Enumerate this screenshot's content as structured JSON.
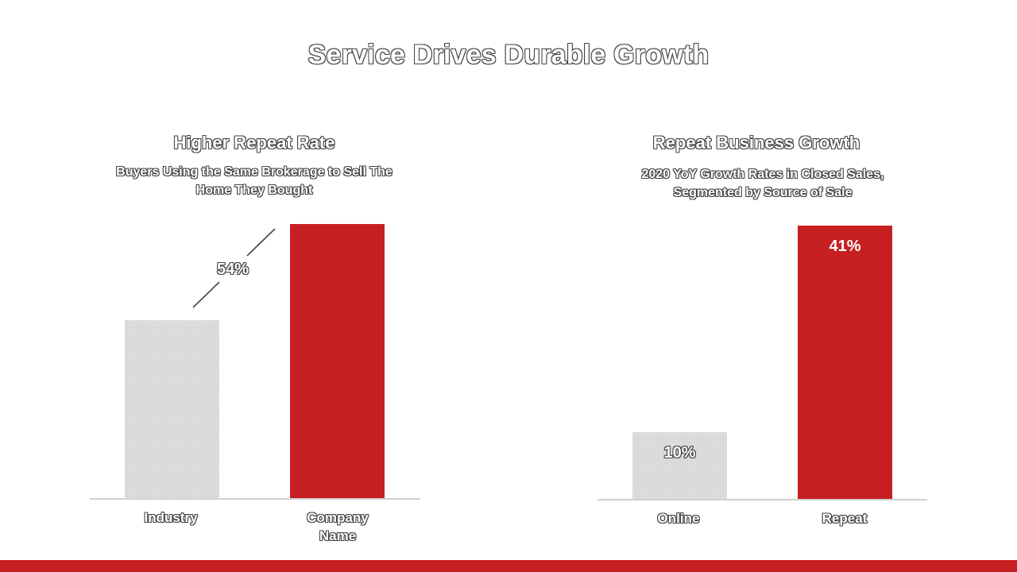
{
  "slide": {
    "title": "Service Drives Durable Growth",
    "brand_color": "#c61f21",
    "neutral_color": "#d9d9d9"
  },
  "left_panel": {
    "title": "Higher Repeat Rate",
    "subtitle_lines": [
      "Buyers Using the Same Brokerage to Sell The",
      "Home They Bought"
    ],
    "difference_label": "54%",
    "category_labels": [
      [
        "Industry"
      ],
      [
        "Company",
        "Name"
      ]
    ]
  },
  "right_panel": {
    "title": "Repeat Business Growth",
    "subtitle_lines": [
      "2020 YoY Growth Rates in Closed Sales,",
      "Segmented by Source of Sale"
    ],
    "value_labels": [
      "10%",
      "41%"
    ],
    "category_labels": [
      [
        "Online"
      ],
      [
        "Repeat"
      ]
    ]
  },
  "chart_data": [
    {
      "type": "bar",
      "title": "Higher Repeat Rate",
      "subtitle": "Buyers Using the Same Brokerage to Sell The Home They Bought",
      "categories": [
        "Industry",
        "Company Name"
      ],
      "values": [
        1.0,
        1.54
      ],
      "annotation": "54%",
      "bar_colors": [
        "#d9d9d9",
        "#c61f21"
      ],
      "ylim": [
        0,
        1.6
      ],
      "grid": false
    },
    {
      "type": "bar",
      "title": "Repeat Business Growth",
      "subtitle": "2020 YoY Growth Rates in Closed Sales, Segmented by Source of Sale",
      "categories": [
        "Online",
        "Repeat"
      ],
      "values": [
        10,
        41
      ],
      "data_labels": [
        "10%",
        "41%"
      ],
      "bar_colors": [
        "#d9d9d9",
        "#c61f21"
      ],
      "ylim": [
        0,
        42
      ],
      "grid": false
    }
  ]
}
